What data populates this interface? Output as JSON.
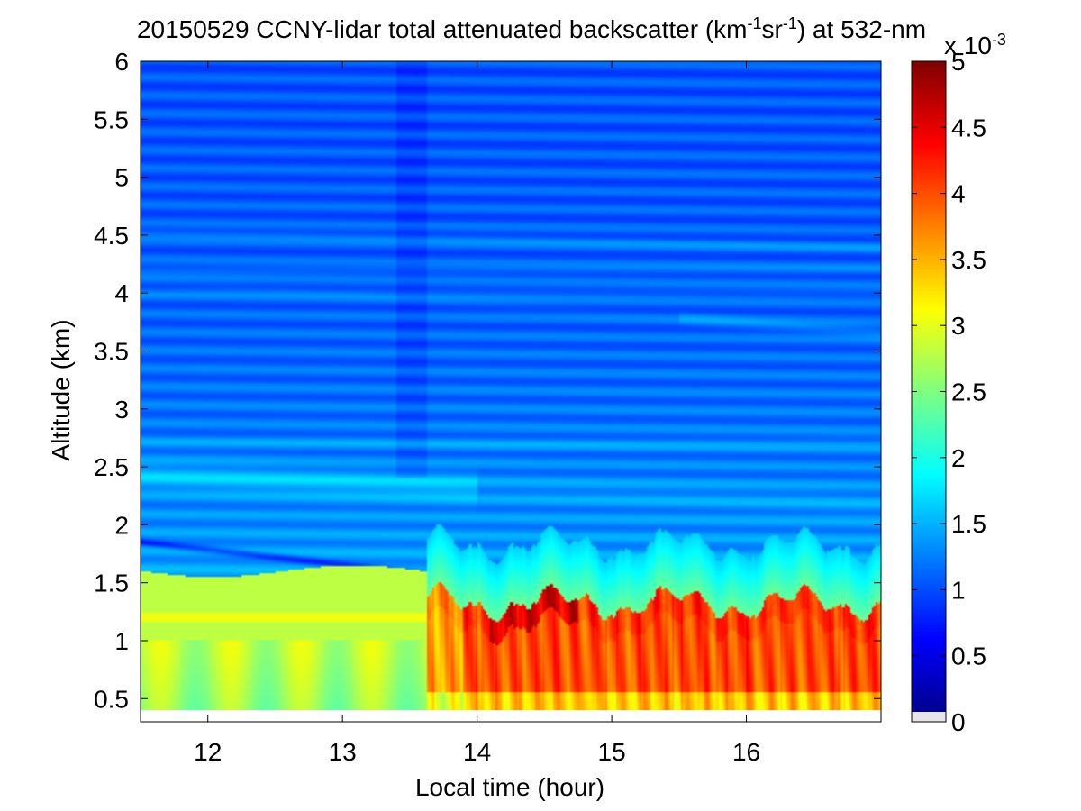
{
  "chart_data": {
    "type": "heatmap",
    "title": {
      "main": "20150529 CCNY-lidar total attenuated backscatter (km",
      "sup1": "-1",
      "mid": "sr",
      "sup2": "-1",
      "tail": ") at 532-nm"
    },
    "xlabel": "Local time (hour)",
    "ylabel": "Altitude (km)",
    "xlim": [
      11.5,
      17.0
    ],
    "ylim": [
      0.3,
      6.0
    ],
    "xticks": [
      12,
      13,
      14,
      15,
      16
    ],
    "yticks": [
      0.5,
      1,
      1.5,
      2,
      2.5,
      3,
      3.5,
      4,
      4.5,
      5,
      5.5,
      6
    ],
    "data_extent": {
      "x": [
        11.5,
        17.0
      ],
      "y": [
        0.4,
        6.0
      ]
    },
    "colorbar": {
      "colormap": "jet",
      "clim": [
        0,
        5
      ],
      "ticks": [
        0,
        0.5,
        1,
        1.5,
        2,
        2.5,
        3,
        3.5,
        4,
        4.5,
        5
      ],
      "exponent_label": {
        "base": "x 10",
        "exp": "-3"
      },
      "below_min_color": "#e6e6ea"
    },
    "features": {
      "instrument_change_time": 13.63,
      "upper_layers_km": [
        4.5,
        4.2,
        4.0,
        3.7,
        2.7,
        2.2
      ],
      "boundary_layer_top_km_before_change": 1.6,
      "boundary_layer_top_km_after_change": 1.3,
      "boundary_layer_value_before_change": 2.8,
      "boundary_layer_value_after_change": 4.0,
      "peak_value": 4.9
    }
  }
}
